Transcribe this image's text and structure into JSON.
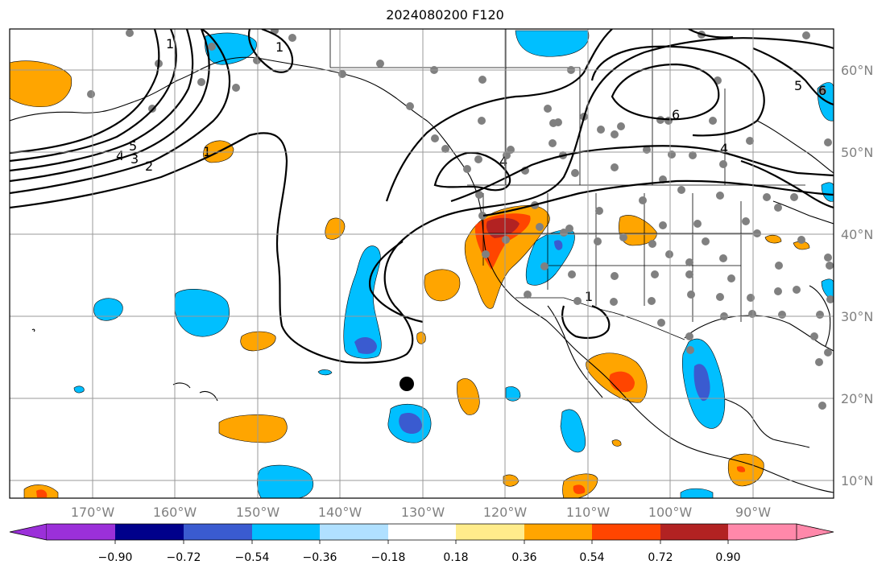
{
  "title": "2024080200 F120",
  "lon_labels": [
    "170°W",
    "160°W",
    "150°W",
    "140°W",
    "130°W",
    "120°W",
    "110°W",
    "100°W",
    "90°W"
  ],
  "lat_labels": [
    "60°N",
    "50°N",
    "40°N",
    "30°N",
    "20°N",
    "10°N"
  ],
  "colorbar": {
    "colors": [
      "#9b30d9",
      "#00008b",
      "#3a5bd0",
      "#00bfff",
      "#b0e0ff",
      "#ffffff",
      "#ffec8b",
      "#ffa500",
      "#ff4500",
      "#b22222",
      "#ff88aa"
    ],
    "tick_labels": [
      "−0.90",
      "−0.72",
      "−0.54",
      "−0.36",
      "−0.18",
      "0.18",
      "0.36",
      "0.54",
      "0.72",
      "0.90"
    ]
  },
  "contour_labels": [
    "1",
    "2",
    "3",
    "4",
    "5",
    "6",
    "4",
    "5",
    "6",
    "1",
    "1",
    "1",
    "4"
  ]
}
